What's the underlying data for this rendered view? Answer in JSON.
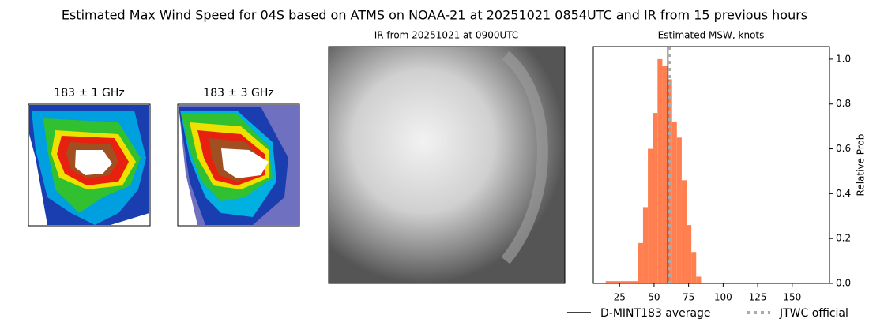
{
  "title": "Estimated Max Wind Speed for 04S based on ATMS on NOAA-21 at 20251021 0854UTC and IR from 15 previous hours",
  "panels": [
    {
      "title": "183 ± 1 GHz"
    },
    {
      "title": "183 ± 3 GHz"
    },
    {
      "title": "IR from 20251021 at 0900UTC"
    }
  ],
  "chart_data": {
    "type": "histogram",
    "title": "Estimated MSW, knots",
    "bins": [
      15,
      38.5,
      42,
      45.5,
      49,
      52.5,
      56,
      59.5,
      63,
      66.5,
      70,
      73.5,
      77,
      80.5,
      84,
      170
    ],
    "values": [
      0.01,
      0.18,
      0.34,
      0.6,
      0.76,
      1.0,
      0.97,
      0.91,
      0.72,
      0.65,
      0.46,
      0.26,
      0.14,
      0.03,
      0.003
    ],
    "color": "#ff7f50",
    "xlim": [
      6,
      177
    ],
    "xticks": [
      25,
      50,
      75,
      100,
      125,
      150
    ],
    "ylim": [
      0,
      1.056
    ],
    "yticks": [
      {
        "value": 0,
        "label": "0.0"
      },
      {
        "value": 0.2,
        "label": "0.2"
      },
      {
        "value": 0.4,
        "label": "0.4"
      },
      {
        "value": 0.6,
        "label": "0.6"
      },
      {
        "value": 0.8,
        "label": "0.8"
      },
      {
        "value": 1.0,
        "label": "1.0"
      }
    ],
    "y_label": "Relative Prob",
    "lines": [
      {
        "name": "D-MINT183 average",
        "value": 60,
        "color": "#000000",
        "style": "solid"
      },
      {
        "name": "JTWC official",
        "value": 61,
        "color": "#aaaaaa",
        "style": "dotted"
      }
    ]
  }
}
